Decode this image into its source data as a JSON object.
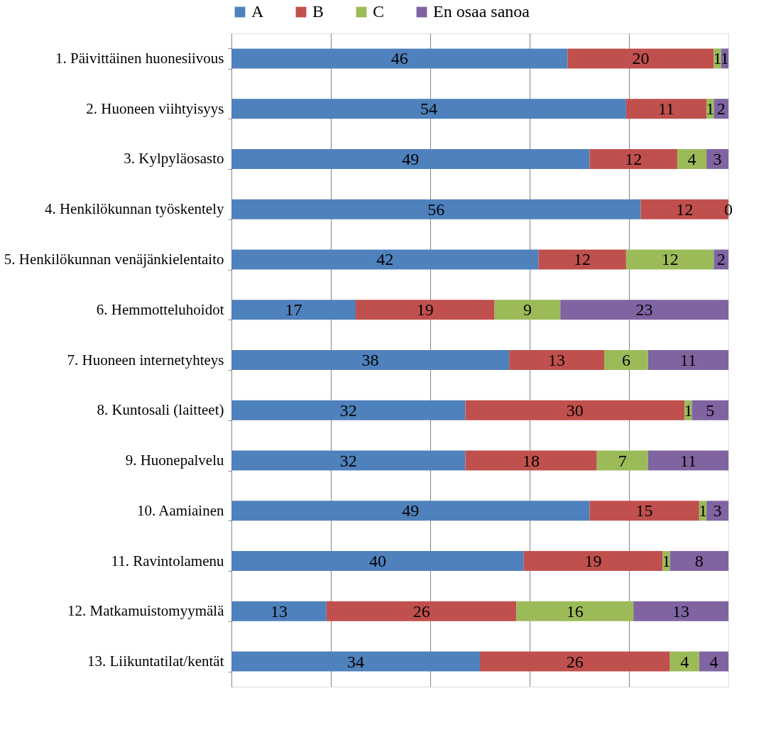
{
  "chart_data": {
    "type": "bar",
    "orientation": "horizontal",
    "stacked": true,
    "categories": [
      "1. Päivittäinen huonesiivous",
      "2. Huoneen viihtyisyys",
      "3. Kylpyläosasto",
      "4. Henkilökunnan työskentely",
      "5. Henkilökunnan venäjänkielentaito",
      "6. Hemmotteluhoidot",
      "7. Huoneen internetyhteys",
      "8. Kuntosali (laitteet)",
      "9. Huonepalvelu",
      "10. Aamiainen",
      "11. Ravintolamenu",
      "12. Matkamuistomyymälä",
      "13. Liikuntatilat/kentät"
    ],
    "series": [
      {
        "name": "A",
        "color": "#4f81bd",
        "values": [
          46,
          54,
          49,
          56,
          42,
          17,
          38,
          32,
          32,
          49,
          40,
          13,
          34
        ],
        "value_labels": [
          "46",
          "54",
          "49",
          "56",
          "42",
          "17",
          "38",
          "32",
          "32",
          "49",
          "40",
          "13",
          "34"
        ]
      },
      {
        "name": "B",
        "color": "#c0504d",
        "values": [
          20,
          11,
          12,
          12,
          12,
          19,
          13,
          30,
          18,
          15,
          19,
          26,
          26
        ],
        "value_labels": [
          "20",
          "11",
          "12",
          "12",
          "12",
          "19",
          "13",
          "30",
          "18",
          "15",
          "19",
          "26",
          "26"
        ]
      },
      {
        "name": "C",
        "color": "#9bbb59",
        "values": [
          1,
          1,
          4,
          0,
          12,
          9,
          6,
          1,
          7,
          1,
          1,
          16,
          4
        ],
        "value_labels": [
          "1",
          "1",
          "4",
          "0",
          "12",
          "9",
          "6",
          "1",
          "7",
          "1",
          "1",
          "16",
          "4"
        ]
      },
      {
        "name": "En osaa sanoa",
        "color": "#8064a2",
        "values": [
          1,
          2,
          3,
          0,
          2,
          23,
          11,
          5,
          11,
          3,
          8,
          13,
          4
        ],
        "value_labels": [
          "1",
          "2",
          "3",
          null,
          "2",
          "23",
          "11",
          "5",
          "11",
          "3",
          "8",
          "13",
          "4"
        ]
      }
    ],
    "xlim": [
      0,
      68
    ],
    "xticks": [
      {
        "value": 0,
        "label": null
      },
      {
        "value": 13.6,
        "label": null
      },
      {
        "value": 27.2,
        "label": null
      },
      {
        "value": 40.8,
        "label": null
      },
      {
        "value": 54.4,
        "label": null
      }
    ],
    "tick_labels": "y",
    "grid": "x",
    "legend": "top"
  }
}
